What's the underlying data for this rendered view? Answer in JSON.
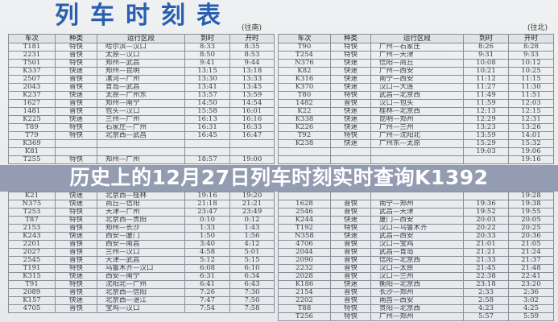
{
  "title": "列车时刻表",
  "banner": "历史上的12月27日列车时刻实时查询K1392",
  "headers": [
    "车次",
    "种类",
    "运行区段",
    "到时",
    "开时"
  ],
  "left": {
    "direction": "(往南)",
    "rows": [
      [
        "T181",
        "特快",
        "哈尔滨—汉口",
        "8:33",
        "8:35"
      ],
      [
        "2231",
        "普快",
        "太原—汉口",
        "8:50",
        "8:53"
      ],
      [
        "T501",
        "特快",
        "郑州—武昌",
        "9:41",
        "9:44"
      ],
      [
        "K337",
        "快速",
        "郑州—昆明",
        "13:15",
        "13:18"
      ],
      [
        "2507",
        "普快",
        "漯河—广州",
        "13:30",
        "13:33"
      ],
      [
        "2043",
        "普快",
        "青岛—武昌",
        "13:41",
        "13:45"
      ],
      [
        "K237",
        "快速",
        "太原—广州东",
        "13:57",
        "13:59"
      ],
      [
        "1627",
        "普快",
        "郑州—南宁",
        "14:50",
        "14:54"
      ],
      [
        "1481",
        "普快",
        "包头—汉口",
        "15:58",
        "16:01"
      ],
      [
        "K225",
        "快速",
        "兰州—广州",
        "16:13",
        "16:16"
      ],
      [
        "T89",
        "特快",
        "石家庄—广州",
        "16:31",
        "16:33"
      ],
      [
        "T79",
        "特快",
        "北京西—武昌",
        "16:45",
        "16:47"
      ],
      [
        "K369",
        "",
        "",
        "",
        ""
      ],
      [
        "K81",
        "",
        "",
        "",
        ""
      ],
      [
        "T255",
        "特快",
        "郑州—广州",
        "18:57",
        "19:00"
      ],
      [
        "K21",
        "快速",
        "北京西—桂林",
        "19:16",
        "19:20"
      ],
      [
        "N375",
        "快速",
        "商丘—信阳",
        "21:18",
        "21:21"
      ],
      [
        "T253",
        "特快",
        "天津—广州",
        "23:47",
        "23:49"
      ],
      [
        "T87",
        "特快",
        "北京西—贵阳",
        "0:10",
        "0:12"
      ],
      [
        "2153",
        "普快",
        "郑州—长沙",
        "1:33",
        "1:43"
      ],
      [
        "K243",
        "快速",
        "西安—厦门",
        "1:50",
        "1:56"
      ],
      [
        "2201",
        "普快",
        "西安—南昌",
        "3:40",
        "4:12"
      ],
      [
        "2027",
        "普快",
        "兰州—汉口",
        "4:58",
        "5:01"
      ],
      [
        "2545",
        "普快",
        "天津—武昌",
        "5:12",
        "5:15"
      ],
      [
        "T191",
        "特快",
        "乌鲁木齐—汉口",
        "6:08",
        "6:10"
      ],
      [
        "K315",
        "快速",
        "西安—南宁",
        "6:31",
        "6:34"
      ],
      [
        "T91",
        "特快",
        "沈阳北—广州",
        "6:41",
        "6:43"
      ],
      [
        "2089",
        "普快",
        "北京西—信阳",
        "7:26",
        "7:30"
      ],
      [
        "K157",
        "快速",
        "北京西—湛江",
        "7:47",
        "7:50"
      ],
      [
        "4705",
        "普快",
        "宝鸡—汉口",
        "7:54",
        "7:58"
      ]
    ]
  },
  "right": {
    "direction": "(往北)",
    "rows": [
      [
        "T90",
        "特快",
        "广州—石家庄",
        "8:26",
        "8:28"
      ],
      [
        "T254",
        "特快",
        "广州—天津",
        "9:31",
        "9:33"
      ],
      [
        "N376",
        "快速",
        "信阳—商丘",
        "10:08",
        "10:12"
      ],
      [
        "K82",
        "快速",
        "广州—西安",
        "10:21",
        "10:25"
      ],
      [
        "K316",
        "快速",
        "南宁—西安",
        "11:12",
        "11:15"
      ],
      [
        "K370",
        "快速",
        "汉口—大连",
        "11:27",
        "11:30"
      ],
      [
        "T80",
        "特快",
        "武昌—北京西",
        "11:49",
        "11:51"
      ],
      [
        "1482",
        "普快",
        "汉口—包头",
        "11:59",
        "12:03"
      ],
      [
        "K22",
        "快速",
        "桂林—北京西",
        "12:13",
        "12:15"
      ],
      [
        "K338",
        "快速",
        "昆明—郑州",
        "12:29",
        "12:31"
      ],
      [
        "K226",
        "快速",
        "广州—兰州",
        "13:23",
        "13:26"
      ],
      [
        "T92",
        "特快",
        "广州—沈阳北",
        "13:59",
        "14:01"
      ],
      [
        "K238",
        "快速",
        "广州东—太原",
        "15:29",
        "15:32"
      ],
      [
        "",
        "",
        "",
        "19:03",
        "19:06"
      ],
      [
        "",
        "",
        "",
        "",
        "19:16"
      ],
      [
        "",
        "",
        "",
        "",
        "19:28"
      ],
      [
        "1628",
        "普快",
        "南宁—郑州",
        "19:36",
        "19:38"
      ],
      [
        "2546",
        "普快",
        "武昌—天津",
        "19:52",
        "19:55"
      ],
      [
        "K244",
        "快速",
        "厦门—西安",
        "20:03",
        "20:05"
      ],
      [
        "T192",
        "特快",
        "汉口—乌鲁木齐",
        "20:22",
        "20:25"
      ],
      [
        "N358",
        "快速",
        "武昌—西安",
        "20:33",
        "20:36"
      ],
      [
        "4706",
        "普快",
        "汉口—宝鸡",
        "21:01",
        "21:05"
      ],
      [
        "2044",
        "普快",
        "武昌—青岛",
        "21:21",
        "21:24"
      ],
      [
        "2090",
        "普快",
        "信阳—北京西",
        "21:33",
        "21:37"
      ],
      [
        "2232",
        "普快",
        "汉口—太原",
        "21:45",
        "21:48"
      ],
      [
        "2028",
        "普快",
        "汉口—兰州",
        "22:38",
        "22:41"
      ],
      [
        "K186",
        "快速",
        "衡阳—北京西",
        "23:18",
        "23:20"
      ],
      [
        "2154",
        "普快",
        "长沙—郑州",
        "2:33",
        "2:36"
      ],
      [
        "2202",
        "普快",
        "南昌—西安",
        "2:58",
        "3:02"
      ],
      [
        "T88",
        "特快",
        "贵阳—北京西",
        "4:23",
        "4:25"
      ],
      [
        "T256",
        "特快",
        "广州—郑州",
        "5:57",
        "5:59"
      ]
    ]
  }
}
